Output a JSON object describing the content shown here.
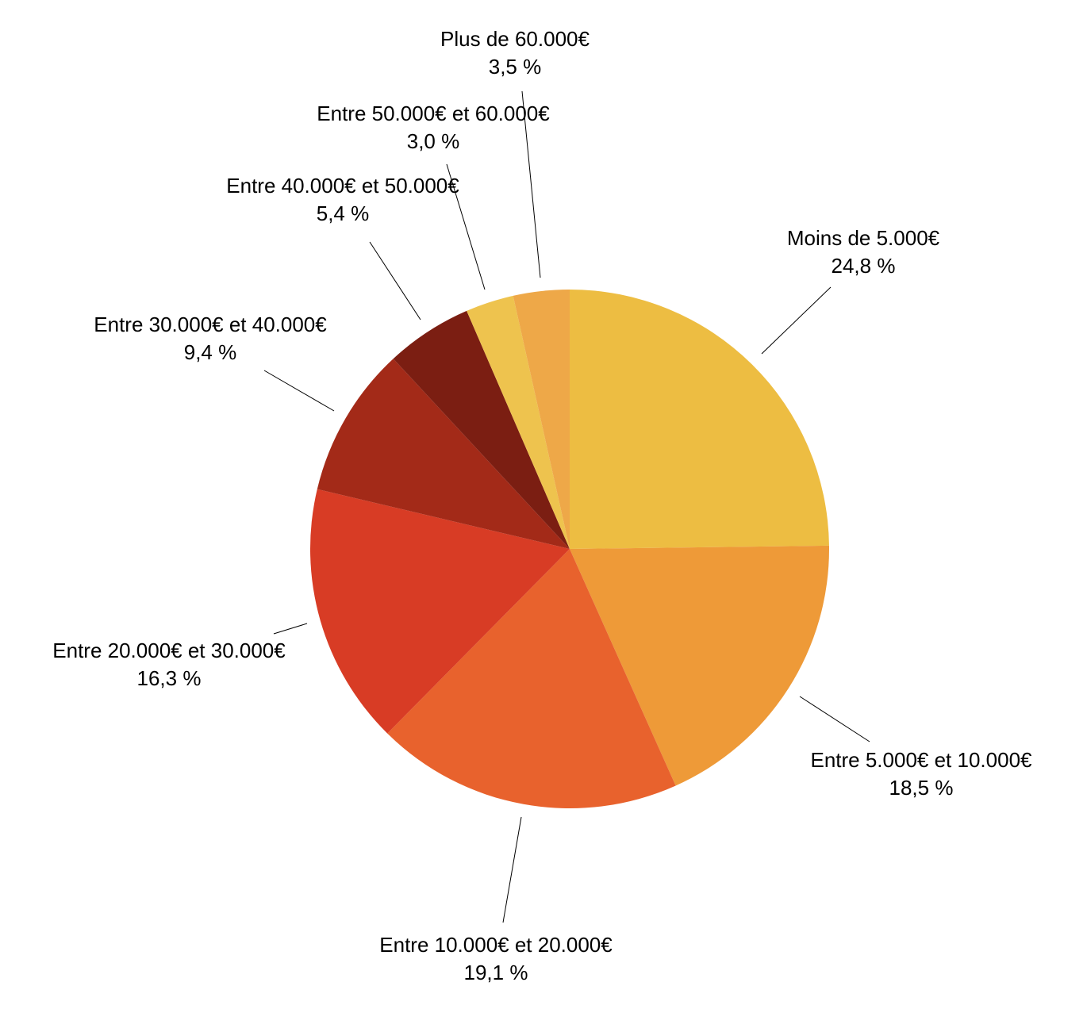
{
  "chart_data": {
    "type": "pie",
    "categories": [
      "Moins de 5.000€",
      "Entre 5.000€ et 10.000€",
      "Entre 10.000€ et 20.000€",
      "Entre 20.000€ et 30.000€",
      "Entre 30.000€ et 40.000€",
      "Entre 40.000€ et 50.000€",
      "Entre 50.000€ et 60.000€",
      "Plus de 60.000€"
    ],
    "values": [
      24.8,
      18.5,
      19.1,
      16.3,
      9.4,
      5.4,
      3.0,
      3.5
    ],
    "value_labels": [
      "24,8 %",
      "18,5 %",
      "19,1 %",
      "16,3 %",
      "9,4 %",
      "5,4 %",
      "3,0 %",
      "3,5 %"
    ],
    "colors": [
      "#EDBD42",
      "#EE9A38",
      "#E8622D",
      "#D83C25",
      "#A32A18",
      "#7B1E12",
      "#EEC34E",
      "#EEA848"
    ]
  }
}
